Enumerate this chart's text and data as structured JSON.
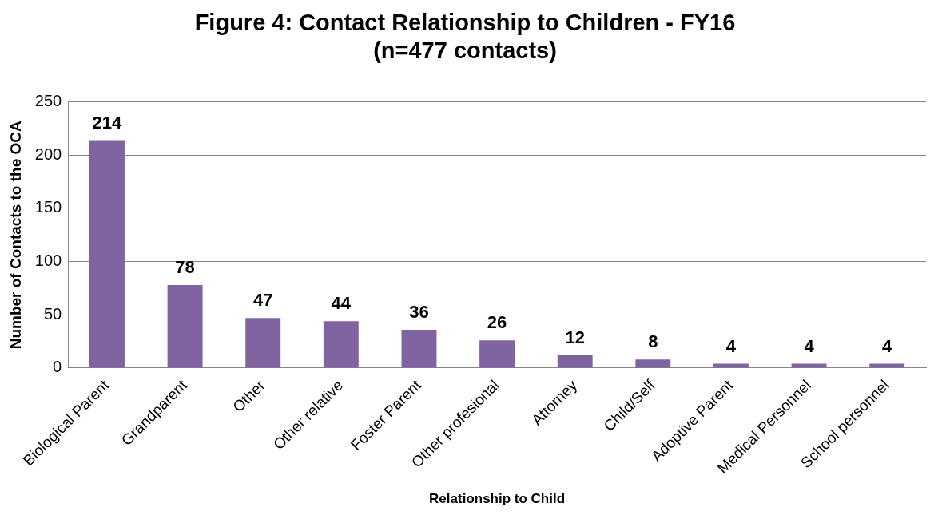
{
  "chart_data": {
    "type": "bar",
    "title": "Figure 4: Contact Relationship to Children - FY16\n(n=477 contacts)",
    "xlabel": "Relationship to Child",
    "ylabel": "Number of Contacts to the OCA",
    "categories": [
      "Biological Parent",
      "Grandparent",
      "Other",
      "Other relative",
      "Foster Parent",
      "Other profesional",
      "Attorney",
      "Child/Self",
      "Adoptive Parent",
      "Medical Personnel",
      "School personnel"
    ],
    "values": [
      214,
      78,
      47,
      44,
      36,
      26,
      12,
      8,
      4,
      4,
      4
    ],
    "color": "#8064a2",
    "ylim": [
      0,
      250
    ],
    "yticks": [
      0,
      50,
      100,
      150,
      200,
      250
    ],
    "grid": "y",
    "data_labels": true
  }
}
